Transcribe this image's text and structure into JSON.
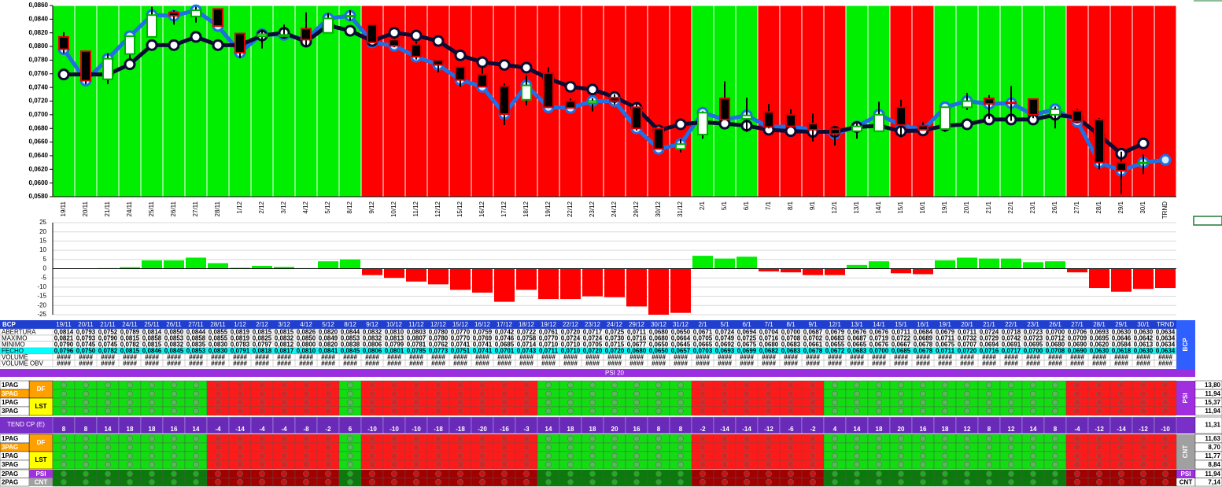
{
  "chart_data": [
    {
      "type": "candlestick",
      "categories": [
        "19/11",
        "20/11",
        "21/11",
        "24/11",
        "25/11",
        "26/11",
        "27/11",
        "28/11",
        "1/12",
        "2/12",
        "3/12",
        "4/12",
        "5/12",
        "8/12",
        "9/12",
        "10/12",
        "11/12",
        "12/12",
        "15/12",
        "16/12",
        "17/12",
        "18/12",
        "19/12",
        "22/12",
        "23/12",
        "24/12",
        "29/12",
        "30/12",
        "31/12",
        "2/1",
        "5/1",
        "6/1",
        "7/1",
        "8/1",
        "9/1",
        "12/1",
        "13/1",
        "14/1",
        "15/1",
        "16/1",
        "19/1",
        "20/1",
        "21/1",
        "22/1",
        "23/1",
        "26/1",
        "27/1",
        "28/1",
        "29/1",
        "30/1",
        "TRND"
      ],
      "open": [
        0.0814,
        0.0793,
        0.0752,
        0.0789,
        0.0814,
        0.085,
        0.0844,
        0.0855,
        0.0819,
        0.0815,
        0.0815,
        0.0826,
        0.082,
        0.0844,
        0.0832,
        0.081,
        0.0803,
        0.078,
        0.077,
        0.0759,
        0.0742,
        0.0722,
        0.0761,
        0.072,
        0.0717,
        0.0725,
        0.0711,
        0.068,
        0.065,
        0.0671,
        0.0724,
        0.0694,
        0.0704,
        0.07,
        0.0687,
        0.0679,
        0.0676,
        0.0676,
        0.0711,
        0.0684,
        0.0679,
        0.0711,
        0.0724,
        0.0718,
        0.0723,
        0.07,
        0.0706,
        0.0693,
        0.063,
        0.063,
        null
      ],
      "high": [
        0.0821,
        0.0793,
        0.079,
        0.0815,
        0.0858,
        0.0853,
        0.0858,
        0.0855,
        0.0819,
        0.0825,
        0.0832,
        0.085,
        0.0849,
        0.0853,
        0.0832,
        0.0813,
        0.0807,
        0.078,
        0.077,
        0.0769,
        0.0746,
        0.0758,
        0.077,
        0.0724,
        0.0724,
        0.073,
        0.0716,
        0.068,
        0.0664,
        0.0705,
        0.0749,
        0.0725,
        0.0716,
        0.0708,
        0.0702,
        0.0683,
        0.0687,
        0.0719,
        0.0722,
        0.0689,
        0.0711,
        0.0732,
        0.0729,
        0.0742,
        0.0723,
        0.0712,
        0.0709,
        0.0695,
        0.0646,
        0.0642,
        null
      ],
      "low": [
        0.079,
        0.0745,
        0.0745,
        0.0782,
        0.0815,
        0.0832,
        0.0835,
        0.083,
        0.0783,
        0.0797,
        0.0812,
        0.08,
        0.082,
        0.0838,
        0.0806,
        0.0799,
        0.0781,
        0.0762,
        0.0741,
        0.0741,
        0.0685,
        0.0714,
        0.071,
        0.071,
        0.0705,
        0.0715,
        0.0677,
        0.065,
        0.0645,
        0.0665,
        0.0692,
        0.0675,
        0.068,
        0.0683,
        0.0661,
        0.0655,
        0.0665,
        0.0676,
        0.0667,
        0.0678,
        0.0675,
        0.0707,
        0.0694,
        0.0691,
        0.0695,
        0.068,
        0.069,
        0.062,
        0.0584,
        0.0613,
        null
      ],
      "close": [
        0.0796,
        0.075,
        0.0782,
        0.0815,
        0.0846,
        0.0845,
        0.0853,
        0.083,
        0.0791,
        0.0818,
        0.0817,
        0.081,
        0.0841,
        0.0845,
        0.0806,
        0.0801,
        0.0785,
        0.0773,
        0.0751,
        0.0741,
        0.0701,
        0.0743,
        0.0711,
        0.071,
        0.072,
        0.072,
        0.068,
        0.065,
        0.0657,
        0.0703,
        0.0693,
        0.0699,
        0.0682,
        0.0683,
        0.0678,
        0.0672,
        0.0683,
        0.07,
        0.0685,
        0.0678,
        0.0711,
        0.072,
        0.0716,
        0.0717,
        0.07,
        0.0708,
        0.069,
        0.063,
        0.0618,
        0.063,
        0.0634
      ],
      "close_color": "#1f6fe5",
      "series": [
        {
          "color": "#0b0b33",
          "values": [
            0.0759,
            0.0759,
            0.0759,
            0.0774,
            0.0802,
            0.0802,
            0.0814,
            0.0802,
            0.0802,
            0.0816,
            0.082,
            0.0807,
            0.0831,
            0.0823,
            0.0808,
            0.082,
            0.0816,
            0.0808,
            0.0787,
            0.0777,
            0.0773,
            0.0769,
            0.0753,
            0.0741,
            0.0737,
            0.0726,
            0.071,
            0.0677,
            0.0686,
            0.0689,
            0.0687,
            0.0684,
            0.0678,
            0.0676,
            0.0675,
            0.0675,
            0.0682,
            0.0684,
            0.0676,
            0.0677,
            0.0684,
            0.0686,
            0.0693,
            0.0693,
            0.0693,
            0.07,
            0.0696,
            0.067,
            0.0643,
            0.0658,
            null
          ]
        }
      ],
      "up_color": "#ffffff",
      "up_border": "#00b000",
      "down_color": "#000000",
      "down_border": "#e00000",
      "background_colors": [
        "#00ee00",
        "#ff0000"
      ],
      "ylim": [
        0.058,
        0.086
      ],
      "yticks": [
        {
          "value": 0.058,
          "label": "0,0580"
        },
        {
          "value": 0.06,
          "label": "0,0600"
        },
        {
          "value": 0.062,
          "label": "0,0620"
        },
        {
          "value": 0.064,
          "label": "0,0640"
        },
        {
          "value": 0.066,
          "label": "0,0660"
        },
        {
          "value": 0.068,
          "label": "0,0680"
        },
        {
          "value": 0.07,
          "label": "0,0700"
        },
        {
          "value": 0.072,
          "label": "0,0720"
        },
        {
          "value": 0.074,
          "label": "0,0740"
        },
        {
          "value": 0.076,
          "label": "0,0760"
        },
        {
          "value": 0.078,
          "label": "0,0780"
        },
        {
          "value": 0.08,
          "label": "0,0800"
        },
        {
          "value": 0.082,
          "label": "0,0820"
        },
        {
          "value": 0.084,
          "label": "0,0840"
        },
        {
          "value": 0.086,
          "label": "0,0860"
        }
      ]
    },
    {
      "type": "bar",
      "values": [
        0.2,
        0.2,
        0.3,
        0.8,
        4.5,
        4.5,
        6,
        3,
        0.5,
        1.5,
        1,
        0.3,
        4,
        5,
        -3.5,
        -5,
        -7,
        -8.5,
        -11.5,
        -13,
        -18,
        -11.5,
        -16.5,
        -16.5,
        -15,
        -15.5,
        -20.5,
        -25,
        -24,
        7,
        5.5,
        6.5,
        -1.5,
        -2,
        -3.5,
        -3.5,
        2,
        4,
        -2.5,
        -3,
        4.5,
        6,
        5.5,
        5.5,
        3.5,
        4,
        -2,
        -10.5,
        -12.5,
        -11,
        -10.5
      ],
      "positive_color": "#00ee00",
      "negative_color": "#ff0000",
      "ylim": [
        -25,
        25
      ],
      "yticks": [
        -25,
        -20,
        -15,
        -10,
        -5,
        0,
        5,
        10,
        15,
        20,
        25
      ],
      "grid": true
    }
  ],
  "table": {
    "title": "BCP",
    "side_label": "BCP",
    "rows": [
      {
        "label": "ABERTURA",
        "cells": [
          "0,0814",
          "0,0793",
          "0,0752",
          "0,0789",
          "0,0814",
          "0,0850",
          "0,0844",
          "0,0855",
          "0,0819",
          "0,0815",
          "0,0815",
          "0,0826",
          "0,0820",
          "0,0844",
          "0,0832",
          "0,0810",
          "0,0803",
          "0,0780",
          "0,0770",
          "0,0759",
          "0,0742",
          "0,0722",
          "0,0761",
          "0,0720",
          "0,0717",
          "0,0725",
          "0,0711",
          "0,0680",
          "0,0650",
          "0,0671",
          "0,0724",
          "0,0694",
          "0,0704",
          "0,0700",
          "0,0687",
          "0,0679",
          "0,0676",
          "0,0676",
          "0,0711",
          "0,0684",
          "0,0679",
          "0,0711",
          "0,0724",
          "0,0718",
          "0,0723",
          "0,0700",
          "0,0706",
          "0,0693",
          "0,0630",
          "0,0630",
          "0,0634"
        ]
      },
      {
        "label": "MAXIMO",
        "cells": [
          "0,0821",
          "0,0793",
          "0,0790",
          "0,0815",
          "0,0858",
          "0,0853",
          "0,0858",
          "0,0855",
          "0,0819",
          "0,0825",
          "0,0832",
          "0,0850",
          "0,0849",
          "0,0853",
          "0,0832",
          "0,0813",
          "0,0807",
          "0,0780",
          "0,0770",
          "0,0769",
          "0,0746",
          "0,0758",
          "0,0770",
          "0,0724",
          "0,0724",
          "0,0730",
          "0,0716",
          "0,0680",
          "0,0664",
          "0,0705",
          "0,0749",
          "0,0725",
          "0,0716",
          "0,0708",
          "0,0702",
          "0,0683",
          "0,0687",
          "0,0719",
          "0,0722",
          "0,0689",
          "0,0711",
          "0,0732",
          "0,0729",
          "0,0742",
          "0,0723",
          "0,0712",
          "0,0709",
          "0,0695",
          "0,0646",
          "0,0642",
          "0,0634"
        ]
      },
      {
        "label": "MINIMO",
        "cells": [
          "0,0790",
          "0,0745",
          "0,0745",
          "0,0782",
          "0,0815",
          "0,0832",
          "0,0835",
          "0,0830",
          "0,0783",
          "0,0797",
          "0,0812",
          "0,0800",
          "0,0820",
          "0,0838",
          "0,0806",
          "0,0799",
          "0,0781",
          "0,0762",
          "0,0741",
          "0,0741",
          "0,0685",
          "0,0714",
          "0,0710",
          "0,0710",
          "0,0705",
          "0,0715",
          "0,0677",
          "0,0650",
          "0,0645",
          "0,0665",
          "0,0692",
          "0,0675",
          "0,0680",
          "0,0683",
          "0,0661",
          "0,0655",
          "0,0665",
          "0,0676",
          "0,0667",
          "0,0678",
          "0,0675",
          "0,0707",
          "0,0694",
          "0,0691",
          "0,0695",
          "0,0680",
          "0,0690",
          "0,0620",
          "0,0584",
          "0,0613",
          "0,0634"
        ]
      },
      {
        "label": "FECHO",
        "cells": [
          "0,0796",
          "0,0750",
          "0,0782",
          "0,0815",
          "0,0846",
          "0,0845",
          "0,0853",
          "0,0830",
          "0,0791",
          "0,0818",
          "0,0817",
          "0,0810",
          "0,0841",
          "0,0845",
          "0,0806",
          "0,0801",
          "0,0785",
          "0,0773",
          "0,0751",
          "0,0741",
          "0,0701",
          "0,0743",
          "0,0711",
          "0,0710",
          "0,0720",
          "0,0720",
          "0,0680",
          "0,0650",
          "0,0657",
          "0,0703",
          "0,0693",
          "0,0699",
          "0,0682",
          "0,0683",
          "0,0678",
          "0,0672",
          "0,0683",
          "0,0700",
          "0,0685",
          "0,0678",
          "0,0711",
          "0,0720",
          "0,0716",
          "0,0717",
          "0,0700",
          "0,0708",
          "0,0690",
          "0,0630",
          "0,0618",
          "0,0630",
          "0,0634"
        ]
      },
      {
        "label": "VOLUME",
        "fill": "####"
      },
      {
        "label": "VOLUME OBV",
        "fill": "####"
      }
    ]
  },
  "signals": {
    "title": "PSI 20",
    "blocks": [
      {
        "label": "PSI",
        "groups": [
          {
            "label": "DF",
            "pages": [
              "1PAG",
              "3PAG"
            ],
            "totals": [
              "13,80",
              "11,94"
            ]
          },
          {
            "label": "LST",
            "pages": [
              "1PAG",
              "3PAG"
            ],
            "totals": [
              "15,37",
              "11,94"
            ]
          }
        ]
      },
      {
        "label": "CNT",
        "groups": [
          {
            "label": "DF",
            "pages": [
              "1PAG",
              "3PAG"
            ],
            "totals": [
              "11,63",
              "8,70"
            ]
          },
          {
            "label": "LST",
            "pages": [
              "1PAG",
              "3PAG"
            ],
            "totals": [
              "11,77",
              "8,84"
            ]
          }
        ]
      }
    ],
    "trend": {
      "label": "TEND CP (E)",
      "values": [
        8,
        8,
        14,
        18,
        18,
        16,
        14,
        -4,
        -14,
        -4,
        -4,
        -8,
        -2,
        6,
        -10,
        -10,
        -10,
        -18,
        -18,
        -20,
        -16,
        -3,
        14,
        18,
        18,
        20,
        16,
        8,
        8,
        -2,
        -14,
        -14,
        -12,
        -6,
        -2,
        4,
        14,
        18,
        20,
        16,
        18,
        12,
        8,
        12,
        14,
        8,
        -4,
        -12,
        -14,
        -12,
        -10
      ],
      "total": "11,31"
    },
    "footer": [
      {
        "page": "2PAG",
        "label": "PSI",
        "total": "11,94"
      },
      {
        "page": "2PAG",
        "label": "CNT",
        "total": "7,14"
      }
    ]
  }
}
